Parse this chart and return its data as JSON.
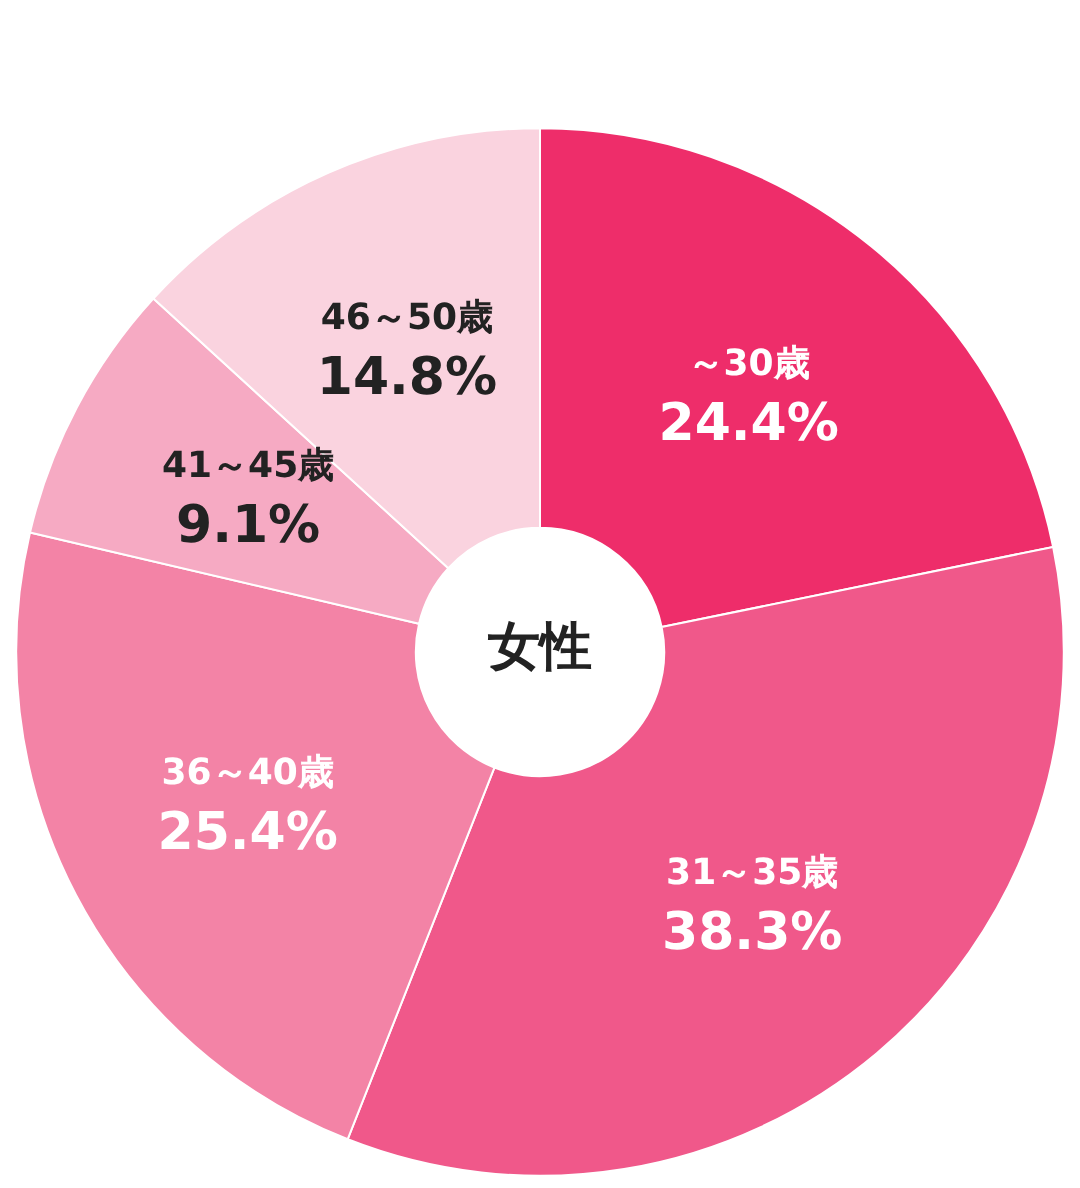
{
  "chart_data": {
    "type": "donut",
    "title": "女性",
    "categories": [
      "～30歳",
      "31～35歳",
      "36～40歳",
      "41～45歳",
      "46～50歳"
    ],
    "values": [
      24.4,
      38.3,
      25.4,
      9.1,
      14.8
    ],
    "value_labels": [
      "24.4%",
      "38.3%",
      "25.4%",
      "9.1%",
      "14.8%"
    ],
    "colors": [
      "#ee2d6a",
      "#f0588a",
      "#f383a6",
      "#f6aac3",
      "#fad3df"
    ],
    "legend": false
  }
}
